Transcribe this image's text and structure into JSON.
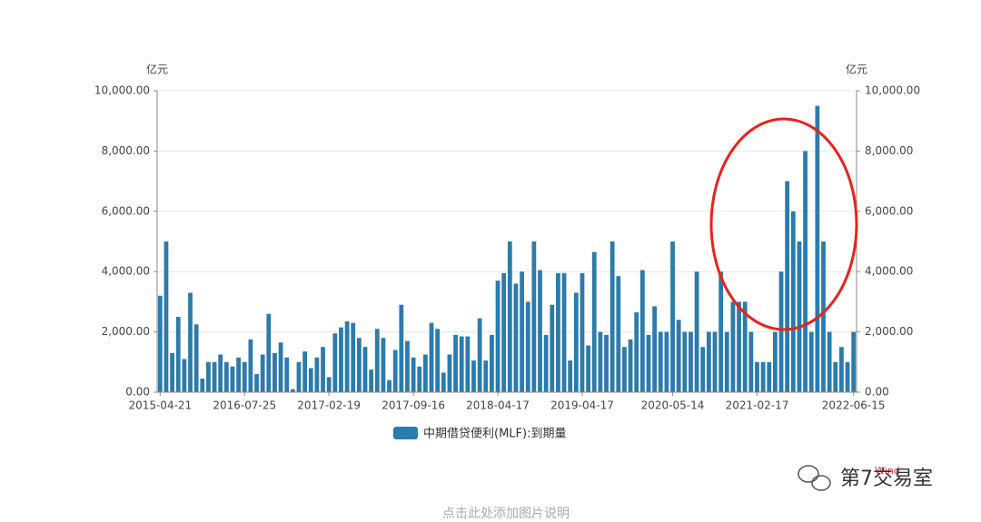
{
  "chart_data": {
    "type": "bar",
    "y_unit": "亿元",
    "y2_unit": "亿元",
    "categories": [
      "2015-04-21",
      null,
      null,
      null,
      null,
      null,
      null,
      null,
      null,
      null,
      null,
      null,
      null,
      null,
      "2016-07-25",
      null,
      null,
      null,
      null,
      null,
      null,
      null,
      null,
      null,
      null,
      null,
      null,
      null,
      "2017-02-19",
      null,
      null,
      null,
      null,
      null,
      null,
      null,
      null,
      null,
      null,
      null,
      null,
      null,
      "2017-09-16",
      null,
      null,
      null,
      null,
      null,
      null,
      null,
      null,
      null,
      null,
      null,
      null,
      null,
      "2018-04-17",
      null,
      null,
      null,
      null,
      null,
      null,
      null,
      null,
      null,
      null,
      null,
      null,
      null,
      "2019-04-17",
      null,
      null,
      null,
      null,
      null,
      null,
      null,
      null,
      null,
      null,
      null,
      null,
      null,
      null,
      "2020-05-14",
      null,
      null,
      null,
      null,
      null,
      null,
      null,
      null,
      null,
      null,
      null,
      null,
      null,
      "2021-02-17",
      null,
      null,
      null,
      null,
      null,
      null,
      null,
      null,
      null,
      null,
      null,
      null,
      null,
      null,
      null,
      "2022-06-15"
    ],
    "series": [
      {
        "name": "中期借贷便利(MLF):到期量",
        "color": "#2b7bab",
        "values": [
          3200,
          5000,
          1300,
          2500,
          1100,
          3300,
          2250,
          450,
          1000,
          1000,
          1250,
          1000,
          850,
          1150,
          1000,
          1750,
          600,
          1250,
          2600,
          1300,
          1650,
          1150,
          100,
          1000,
          1350,
          800,
          1150,
          1500,
          500,
          1950,
          2150,
          2350,
          2300,
          1800,
          1500,
          750,
          2100,
          1800,
          400,
          1400,
          2900,
          1700,
          1150,
          850,
          1250,
          2300,
          2100,
          650,
          1250,
          1900,
          1850,
          1850,
          1050,
          2450,
          1050,
          1900,
          3700,
          3950,
          5000,
          3600,
          4000,
          3000,
          5000,
          4050,
          1900,
          2900,
          3950,
          3950,
          1050,
          3300,
          3950,
          1550,
          4650,
          2000,
          1900,
          5000,
          3850,
          1500,
          1750,
          2650,
          4050,
          1900,
          2850,
          2000,
          2000,
          5000,
          2400,
          2000,
          2000,
          4000,
          1500,
          2000,
          2000,
          4000,
          2000,
          3000,
          3000,
          3000,
          2000,
          1000,
          1000,
          1000,
          2000,
          4000,
          7000,
          6000,
          5000,
          8000,
          2000,
          9500,
          5000,
          2000,
          1000,
          1500,
          1000,
          2000
        ]
      }
    ],
    "ylim": [
      0,
      10000
    ],
    "yticks": [
      {
        "value": 0,
        "label": "0.00"
      },
      {
        "value": 2000,
        "label": "2,000.00"
      },
      {
        "value": 4000,
        "label": "4,000.00"
      },
      {
        "value": 6000,
        "label": "6,000.00"
      },
      {
        "value": 8000,
        "label": "8,000.00"
      },
      {
        "value": 10000,
        "label": "10,000.00"
      }
    ],
    "y2lim": [
      0,
      10000
    ],
    "y2ticks": [
      {
        "value": 0,
        "label": "0.00"
      },
      {
        "value": 2000,
        "label": "2,000.00"
      },
      {
        "value": 4000,
        "label": "4,000.00"
      },
      {
        "value": 6000,
        "label": "6,000.00"
      },
      {
        "value": 8000,
        "label": "8,000.00"
      },
      {
        "value": 10000,
        "label": "10,000.00"
      }
    ],
    "grid": true
  },
  "overlay": {
    "source_mark": "Wind",
    "watermark": "第7交易室",
    "caption": "点击此处添加图片说明"
  }
}
